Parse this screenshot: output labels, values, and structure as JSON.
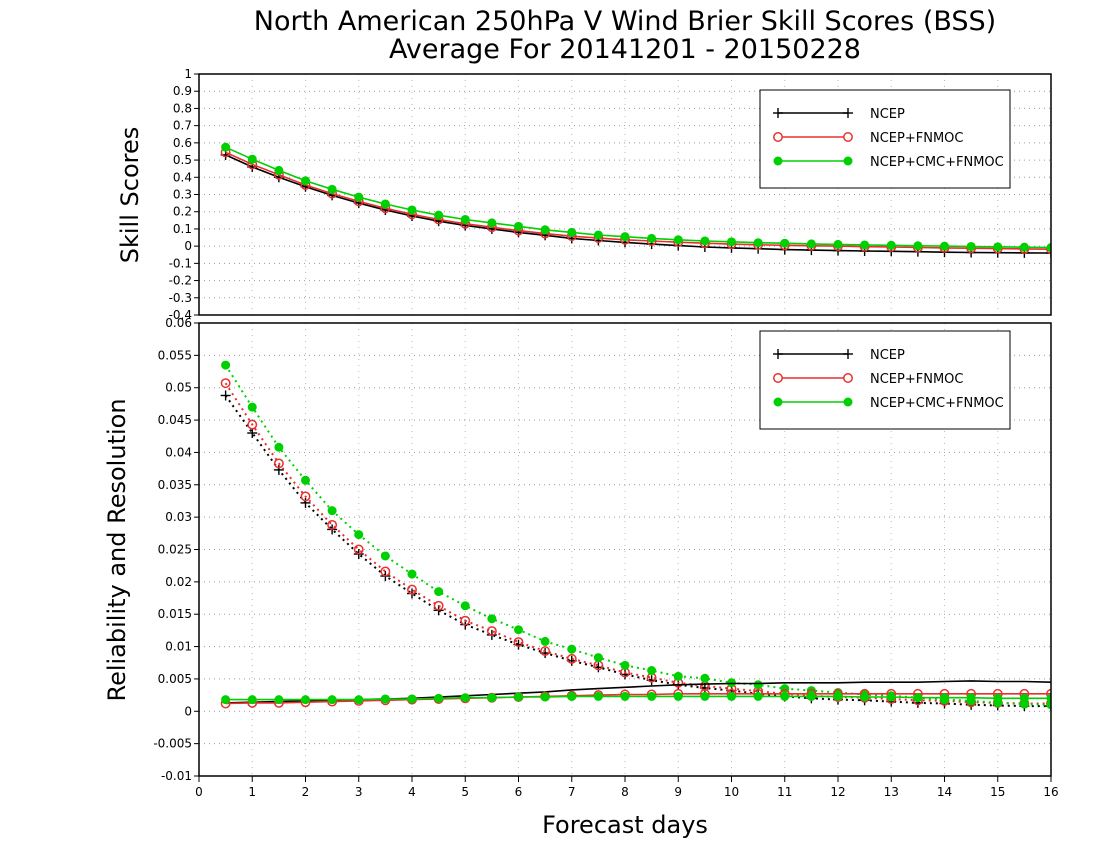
{
  "chart_data": {
    "title_line1": "North American 250hPa V Wind Brier Skill Scores (BSS)",
    "title_line2": "Average For 20141201 - 20150228",
    "xlabel": "Forecast days",
    "xlim": [
      0,
      16
    ],
    "x_ticks": [
      "0",
      "1",
      "2",
      "3",
      "4",
      "5",
      "6",
      "7",
      "8",
      "9",
      "10",
      "11",
      "12",
      "13",
      "14",
      "15",
      "16"
    ],
    "x": [
      0.5,
      1,
      1.5,
      2,
      2.5,
      3,
      3.5,
      4,
      4.5,
      5,
      5.5,
      6,
      6.5,
      7,
      7.5,
      8,
      8.5,
      9,
      9.5,
      10,
      10.5,
      11,
      11.5,
      12,
      12.5,
      13,
      13.5,
      14,
      14.5,
      15,
      15.5,
      16
    ],
    "colors": {
      "NCEP": "#000000",
      "NCEP+FNMOC": "#e83030",
      "NCEP+CMC+FNMOC": "#00d000"
    },
    "panels": [
      {
        "type": "line",
        "ylabel": "Skill Scores",
        "ylim": [
          -0.4,
          1
        ],
        "y_ticks": [
          "1",
          "0.9",
          "0.8",
          "0.7",
          "0.6",
          "0.5",
          "0.4",
          "0.3",
          "0.2",
          "0.1",
          "0",
          "-0.1",
          "-0.2",
          "-0.3",
          "-0.4"
        ],
        "grid": true,
        "legend": [
          "NCEP",
          "NCEP+FNMOC",
          "NCEP+CMC+FNMOC"
        ],
        "legend_position": "top-right",
        "series": [
          {
            "name": "NCEP",
            "marker": "plus",
            "style": "solid",
            "values": [
              0.53,
              0.46,
              0.4,
              0.345,
              0.295,
              0.25,
              0.21,
              0.175,
              0.145,
              0.12,
              0.1,
              0.08,
              0.063,
              0.045,
              0.033,
              0.022,
              0.012,
              0.003,
              -0.005,
              -0.01,
              -0.015,
              -0.02,
              -0.023,
              -0.026,
              -0.028,
              -0.03,
              -0.032,
              -0.035,
              -0.037,
              -0.038,
              -0.039,
              -0.04
            ]
          },
          {
            "name": "NCEP+FNMOC",
            "marker": "circle-open",
            "style": "solid",
            "values": [
              0.545,
              0.475,
              0.415,
              0.355,
              0.305,
              0.26,
              0.22,
              0.185,
              0.155,
              0.13,
              0.11,
              0.09,
              0.073,
              0.058,
              0.047,
              0.037,
              0.03,
              0.023,
              0.017,
              0.012,
              0.008,
              0.005,
              0.002,
              0,
              -0.003,
              -0.005,
              -0.008,
              -0.01,
              -0.012,
              -0.014,
              -0.016,
              -0.018
            ]
          },
          {
            "name": "NCEP+CMC+FNMOC",
            "marker": "circle-filled",
            "style": "solid",
            "values": [
              0.575,
              0.505,
              0.44,
              0.38,
              0.33,
              0.285,
              0.245,
              0.21,
              0.18,
              0.155,
              0.135,
              0.115,
              0.095,
              0.08,
              0.065,
              0.055,
              0.045,
              0.037,
              0.03,
              0.025,
              0.02,
              0.017,
              0.013,
              0.01,
              0.007,
              0.005,
              0.002,
              0,
              -0.002,
              -0.004,
              -0.006,
              -0.008
            ]
          }
        ]
      },
      {
        "type": "line",
        "ylabel": "Reliability and Resolution",
        "ylim": [
          -0.01,
          0.06
        ],
        "y_ticks": [
          "0.06",
          "0.055",
          "0.05",
          "0.045",
          "0.04",
          "0.035",
          "0.03",
          "0.025",
          "0.02",
          "0.015",
          "0.01",
          "0.005",
          "0",
          "-0.005",
          "-0.01"
        ],
        "grid": true,
        "legend": [
          "NCEP",
          "NCEP+FNMOC",
          "NCEP+CMC+FNMOC"
        ],
        "legend_position": "top-right",
        "series": [
          {
            "name": "NCEP",
            "metric": "resolution",
            "marker": "plus",
            "style": "dotted",
            "values": [
              0.0488,
              0.043,
              0.0373,
              0.0322,
              0.0281,
              0.0243,
              0.0209,
              0.0182,
              0.0156,
              0.0134,
              0.0118,
              0.0103,
              0.009,
              0.0078,
              0.0068,
              0.0057,
              0.0048,
              0.0041,
              0.0036,
              0.0032,
              0.0027,
              0.0023,
              0.002,
              0.0018,
              0.0017,
              0.0015,
              0.0013,
              0.0012,
              0.001,
              0.0009,
              0.0008,
              0.0008
            ]
          },
          {
            "name": "NCEP+FNMOC",
            "metric": "resolution",
            "marker": "circle-open",
            "style": "dotted",
            "values": [
              0.0507,
              0.0443,
              0.0383,
              0.0332,
              0.0288,
              0.025,
              0.0216,
              0.0188,
              0.0163,
              0.014,
              0.0124,
              0.0107,
              0.0093,
              0.0081,
              0.0071,
              0.006,
              0.0052,
              0.0044,
              0.0039,
              0.0035,
              0.0031,
              0.0027,
              0.0024,
              0.0022,
              0.0021,
              0.0019,
              0.0017,
              0.0016,
              0.0014,
              0.0013,
              0.0012,
              0.0012
            ]
          },
          {
            "name": "NCEP+CMC+FNMOC",
            "metric": "resolution",
            "marker": "circle-filled",
            "style": "dotted",
            "values": [
              0.0535,
              0.047,
              0.0408,
              0.0357,
              0.031,
              0.0273,
              0.024,
              0.0212,
              0.0185,
              0.0163,
              0.0143,
              0.0126,
              0.0108,
              0.0096,
              0.0083,
              0.0071,
              0.0063,
              0.0054,
              0.0051,
              0.0044,
              0.0041,
              0.0035,
              0.0032,
              0.0029,
              0.0026,
              0.0024,
              0.0021,
              0.0018,
              0.0016,
              0.0013,
              0.0011,
              0.001
            ]
          },
          {
            "name": "NCEP",
            "metric": "reliability",
            "marker": "none",
            "style": "solid",
            "values": [
              0.0013,
              0.0014,
              0.0015,
              0.0016,
              0.0017,
              0.0018,
              0.0019,
              0.002,
              0.0022,
              0.0024,
              0.0026,
              0.0028,
              0.003,
              0.0033,
              0.0035,
              0.0037,
              0.0039,
              0.0041,
              0.0042,
              0.0043,
              0.0043,
              0.0044,
              0.0044,
              0.0044,
              0.0045,
              0.0045,
              0.0045,
              0.0046,
              0.0047,
              0.0046,
              0.0046,
              0.0045
            ]
          },
          {
            "name": "NCEP+FNMOC",
            "metric": "reliability",
            "marker": "circle-open",
            "style": "solid",
            "values": [
              0.0012,
              0.0013,
              0.0013,
              0.0014,
              0.0015,
              0.0016,
              0.0017,
              0.0018,
              0.0019,
              0.002,
              0.0021,
              0.0022,
              0.0023,
              0.0024,
              0.0025,
              0.0026,
              0.0026,
              0.0027,
              0.0027,
              0.0027,
              0.0027,
              0.0027,
              0.0027,
              0.0027,
              0.0027,
              0.0027,
              0.0027,
              0.0027,
              0.0027,
              0.0027,
              0.0027,
              0.0027
            ]
          },
          {
            "name": "NCEP+CMC+FNMOC",
            "metric": "reliability",
            "marker": "circle-filled",
            "style": "solid",
            "values": [
              0.0018,
              0.0018,
              0.0018,
              0.0018,
              0.0018,
              0.0018,
              0.0019,
              0.0019,
              0.002,
              0.0021,
              0.0021,
              0.0022,
              0.0022,
              0.0023,
              0.0023,
              0.0023,
              0.0023,
              0.0023,
              0.0023,
              0.0023,
              0.0023,
              0.0023,
              0.0023,
              0.0023,
              0.0022,
              0.0022,
              0.0021,
              0.0021,
              0.0021,
              0.002,
              0.002,
              0.002
            ]
          }
        ]
      }
    ]
  }
}
